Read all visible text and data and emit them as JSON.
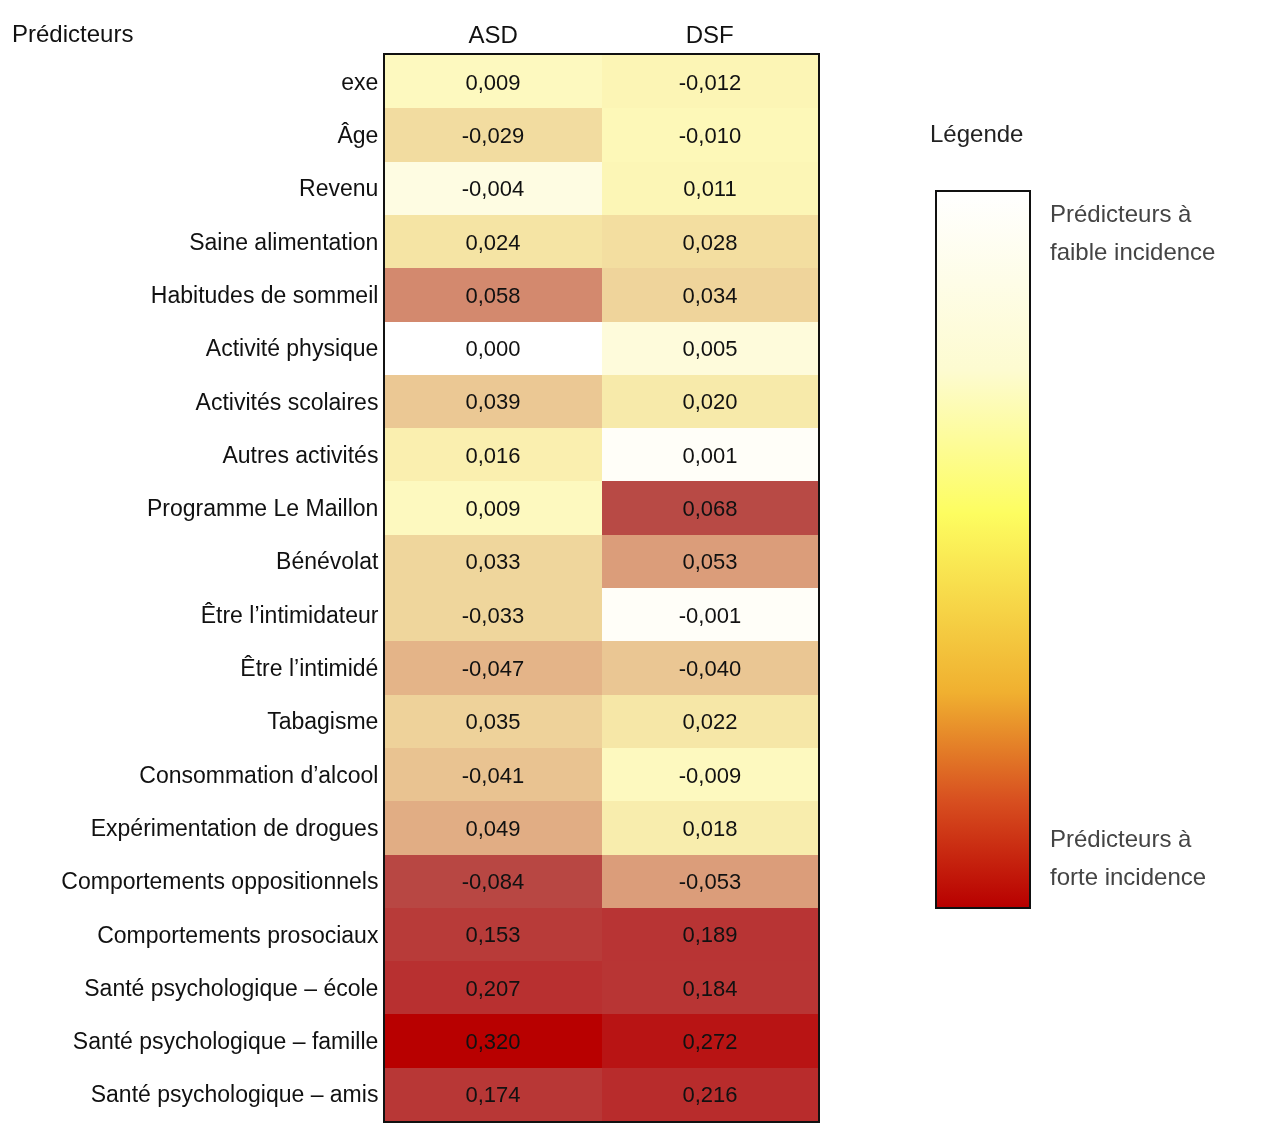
{
  "chart_data": {
    "type": "heatmap",
    "ylabel": "Prédicteurs",
    "legend_title": "Légende",
    "annotations": [
      "Prédicteurs à faible incidence",
      "Prédicteurs à forte incidence"
    ],
    "categories": [
      "ASD",
      "DSF"
    ],
    "y_categories": [
      "exe",
      "Âge",
      "Revenu",
      "Saine alimentation",
      "Habitudes de sommeil",
      "Activité physique",
      "Activités scolaires",
      "Autres activités",
      "Programme Le Maillon",
      "Bénévolat",
      "Être l’intimidateur",
      "Être l’intimidé",
      "Tabagisme",
      "Consommation d’alcool",
      "Expérimentation de drogues",
      "Comportements oppositionnels",
      "Comportements prosociaux",
      "Santé psychologique – école",
      "Santé psychologique – famille",
      "Santé psychologique – amis"
    ],
    "cells": [
      [
        0.009,
        -0.012
      ],
      [
        -0.029,
        -0.01
      ],
      [
        -0.004,
        0.011
      ],
      [
        0.024,
        0.028
      ],
      [
        0.058,
        0.034
      ],
      [
        0.0,
        0.005
      ],
      [
        0.039,
        0.02
      ],
      [
        0.016,
        0.001
      ],
      [
        0.009,
        0.068
      ],
      [
        0.033,
        0.053
      ],
      [
        -0.033,
        -0.001
      ],
      [
        -0.047,
        -0.04
      ],
      [
        0.035,
        0.022
      ],
      [
        -0.041,
        -0.009
      ],
      [
        0.049,
        0.018
      ],
      [
        -0.084,
        -0.053
      ],
      [
        0.153,
        0.189
      ],
      [
        0.207,
        0.184
      ],
      [
        0.32,
        0.272
      ],
      [
        0.174,
        0.216
      ]
    ],
    "cell_labels": [
      [
        "0,009",
        "-0,012"
      ],
      [
        "-0,029",
        "-0,010"
      ],
      [
        "-0,004",
        "0,011"
      ],
      [
        "0,024",
        "0,028"
      ],
      [
        "0,058",
        "0,034"
      ],
      [
        "0,000",
        "0,005"
      ],
      [
        "0,039",
        "0,020"
      ],
      [
        "0,016",
        "0,001"
      ],
      [
        "0,009",
        "0,068"
      ],
      [
        "0,033",
        "0,053"
      ],
      [
        "-0,033",
        "-0,001"
      ],
      [
        "-0,047",
        "-0,040"
      ],
      [
        "0,035",
        "0,022"
      ],
      [
        "-0,041",
        "-0,009"
      ],
      [
        "0,049",
        "0,018"
      ],
      [
        "-0,084",
        "-0,053"
      ],
      [
        "0,153",
        "0,189"
      ],
      [
        "0,207",
        "0,184"
      ],
      [
        "0,320",
        "0,272"
      ],
      [
        "0,174",
        "0,216"
      ]
    ]
  }
}
